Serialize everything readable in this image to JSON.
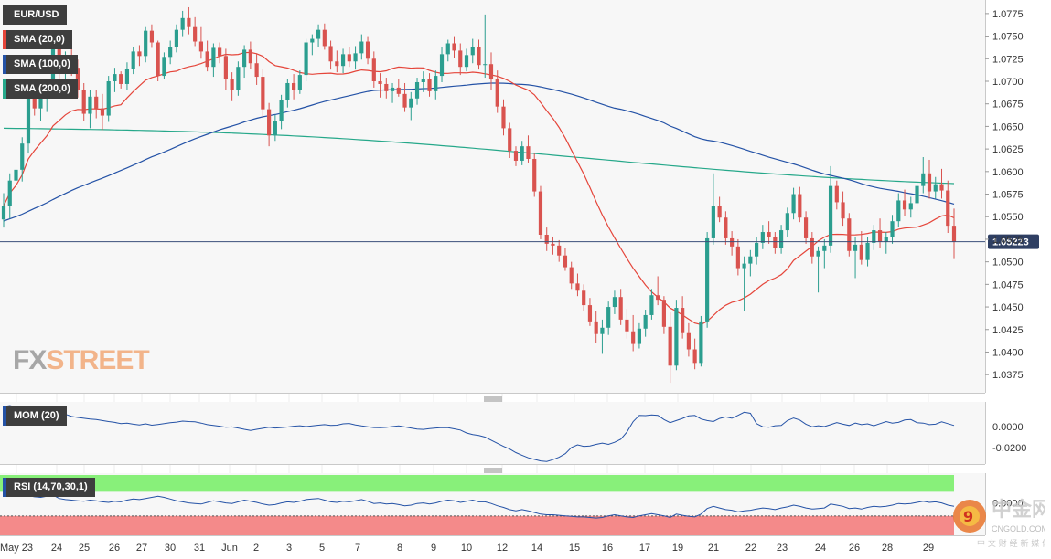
{
  "symbol": "EUR/USD",
  "indicators": {
    "sma20": "SMA (20,0)",
    "sma100": "SMA (100,0)",
    "sma200": "SMA (200,0)",
    "mom": "MOM (20)",
    "rsi": "RSI (14,70,30,1)"
  },
  "watermark": {
    "fx": "FX",
    "street": "STREET"
  },
  "corner_logo": {
    "cn": "中金网",
    "url": "CNGOLD.COM.CN",
    "tagline": "中 文 财 经 新 媒 体"
  },
  "colors": {
    "up": "#2b9e8f",
    "down": "#d9534f",
    "sma20": "#e5453a",
    "sma100": "#2452a6",
    "sma200": "#26a88a",
    "mom": "#2452a6",
    "rsi": "#2452a6",
    "rsi_over": "#88f07a",
    "rsi_under": "#f48a8a",
    "price_line": "#3b4f7a"
  },
  "chart_data": {
    "type": "candlestick",
    "title": "EUR/USD",
    "timeframe_note": "4-hour candles",
    "x_tick_labels": [
      "May 23",
      "24",
      "25",
      "26",
      "27",
      "30",
      "31",
      "Jun",
      "2",
      "3",
      "5",
      "7",
      "8",
      "9",
      "10",
      "12",
      "14",
      "15",
      "16",
      "17",
      "19",
      "21",
      "22",
      "23",
      "24",
      "26",
      "28",
      "29"
    ],
    "price_axis": {
      "ticks": [
        "1.0775",
        "1.0750",
        "1.0725",
        "1.0700",
        "1.0675",
        "1.0650",
        "1.0625",
        "1.0600",
        "1.0575",
        "1.0550",
        "1.0525",
        "1.0500",
        "1.0475",
        "1.0450",
        "1.0425",
        "1.0400",
        "1.0375"
      ],
      "range": [
        1.036,
        1.0785
      ],
      "last_price": "1.05223",
      "last_price_value": 1.05223
    },
    "candles": [
      [
        1.0547,
        1.0576,
        1.0538,
        1.0562
      ],
      [
        1.0562,
        1.0598,
        1.0548,
        1.059
      ],
      [
        1.059,
        1.0625,
        1.0577,
        1.0602
      ],
      [
        1.0602,
        1.0638,
        1.0589,
        1.0631
      ],
      [
        1.0631,
        1.0694,
        1.062,
        1.0685
      ],
      [
        1.0685,
        1.0703,
        1.0662,
        1.067
      ],
      [
        1.067,
        1.0688,
        1.0656,
        1.0681
      ],
      [
        1.0681,
        1.0702,
        1.0666,
        1.0695
      ],
      [
        1.0695,
        1.0748,
        1.0686,
        1.074
      ],
      [
        1.074,
        1.0744,
        1.0701,
        1.071
      ],
      [
        1.071,
        1.0733,
        1.0696,
        1.0724
      ],
      [
        1.0724,
        1.0743,
        1.0706,
        1.0715
      ],
      [
        1.0715,
        1.0724,
        1.0682,
        1.069
      ],
      [
        1.069,
        1.0698,
        1.0656,
        1.0664
      ],
      [
        1.0664,
        1.069,
        1.0648,
        1.0683
      ],
      [
        1.0683,
        1.069,
        1.0659,
        1.067
      ],
      [
        1.067,
        1.0686,
        1.0646,
        1.0662
      ],
      [
        1.0662,
        1.0706,
        1.0655,
        1.07
      ],
      [
        1.07,
        1.0715,
        1.0688,
        1.0708
      ],
      [
        1.0708,
        1.0711,
        1.0692,
        1.0697
      ],
      [
        1.0697,
        1.0721,
        1.069,
        1.0714
      ],
      [
        1.0714,
        1.0738,
        1.0708,
        1.0733
      ],
      [
        1.0733,
        1.074,
        1.0717,
        1.0728
      ],
      [
        1.0728,
        1.076,
        1.0721,
        1.0756
      ],
      [
        1.0756,
        1.0763,
        1.0737,
        1.0743
      ],
      [
        1.0743,
        1.0745,
        1.07,
        1.0706
      ],
      [
        1.0706,
        1.0732,
        1.0702,
        1.0727
      ],
      [
        1.0727,
        1.0745,
        1.0719,
        1.0738
      ],
      [
        1.0738,
        1.0763,
        1.0732,
        1.0757
      ],
      [
        1.0757,
        1.0778,
        1.075,
        1.077
      ],
      [
        1.077,
        1.0782,
        1.0752,
        1.076
      ],
      [
        1.076,
        1.0771,
        1.0739,
        1.0744
      ],
      [
        1.0744,
        1.076,
        1.0725,
        1.0733
      ],
      [
        1.0733,
        1.0745,
        1.0711,
        1.0716
      ],
      [
        1.0716,
        1.0742,
        1.0705,
        1.0737
      ],
      [
        1.0737,
        1.0743,
        1.072,
        1.0728
      ],
      [
        1.0728,
        1.0736,
        1.069,
        1.0702
      ],
      [
        1.0702,
        1.071,
        1.0678,
        1.069
      ],
      [
        1.069,
        1.0722,
        1.0684,
        1.0716
      ],
      [
        1.0716,
        1.074,
        1.0704,
        1.0735
      ],
      [
        1.0735,
        1.0744,
        1.0714,
        1.072
      ],
      [
        1.072,
        1.0731,
        1.0696,
        1.0705
      ],
      [
        1.0705,
        1.0714,
        1.066,
        1.0669
      ],
      [
        1.0669,
        1.0676,
        1.0628,
        1.064
      ],
      [
        1.064,
        1.0663,
        1.0634,
        1.0656
      ],
      [
        1.0656,
        1.0685,
        1.0647,
        1.0679
      ],
      [
        1.0679,
        1.0703,
        1.0671,
        1.0698
      ],
      [
        1.0698,
        1.0708,
        1.068,
        1.069
      ],
      [
        1.069,
        1.0712,
        1.0686,
        1.0707
      ],
      [
        1.0707,
        1.0747,
        1.07,
        1.0743
      ],
      [
        1.0743,
        1.0752,
        1.0729,
        1.0747
      ],
      [
        1.0747,
        1.0763,
        1.0738,
        1.0757
      ],
      [
        1.0757,
        1.0764,
        1.0735,
        1.0739
      ],
      [
        1.0739,
        1.0745,
        1.0713,
        1.0722
      ],
      [
        1.0722,
        1.0734,
        1.071,
        1.0717
      ],
      [
        1.0717,
        1.0736,
        1.0709,
        1.073
      ],
      [
        1.073,
        1.0738,
        1.0716,
        1.0722
      ],
      [
        1.0722,
        1.0739,
        1.0713,
        1.0731
      ],
      [
        1.0731,
        1.0752,
        1.0724,
        1.0744
      ],
      [
        1.0744,
        1.075,
        1.0719,
        1.0725
      ],
      [
        1.0725,
        1.0733,
        1.0693,
        1.07
      ],
      [
        1.07,
        1.0709,
        1.0682,
        1.0697
      ],
      [
        1.0697,
        1.0704,
        1.0681,
        1.0689
      ],
      [
        1.0689,
        1.0698,
        1.0676,
        1.0693
      ],
      [
        1.0693,
        1.0703,
        1.0683,
        1.0686
      ],
      [
        1.0686,
        1.0698,
        1.0666,
        1.0671
      ],
      [
        1.0671,
        1.0688,
        1.0657,
        1.0681
      ],
      [
        1.0681,
        1.0704,
        1.0674,
        1.0699
      ],
      [
        1.0699,
        1.0711,
        1.0688,
        1.0703
      ],
      [
        1.0703,
        1.0709,
        1.0683,
        1.0689
      ],
      [
        1.0689,
        1.0712,
        1.068,
        1.0706
      ],
      [
        1.0706,
        1.0738,
        1.0699,
        1.073
      ],
      [
        1.073,
        1.0746,
        1.0722,
        1.0742
      ],
      [
        1.0742,
        1.075,
        1.0726,
        1.0734
      ],
      [
        1.0734,
        1.0742,
        1.0707,
        1.0716
      ],
      [
        1.0716,
        1.0736,
        1.0711,
        1.0729
      ],
      [
        1.0729,
        1.0747,
        1.072,
        1.0738
      ],
      [
        1.0738,
        1.0746,
        1.0713,
        1.0718
      ],
      [
        1.0718,
        1.0774,
        1.0704,
        1.0719
      ],
      [
        1.0719,
        1.0732,
        1.069,
        1.0702
      ],
      [
        1.0702,
        1.0712,
        1.0665,
        1.0672
      ],
      [
        1.0672,
        1.068,
        1.064,
        1.0648
      ],
      [
        1.0648,
        1.0654,
        1.0615,
        1.0623
      ],
      [
        1.0623,
        1.0628,
        1.0606,
        1.0612
      ],
      [
        1.0612,
        1.0634,
        1.0607,
        1.0628
      ],
      [
        1.0628,
        1.064,
        1.061,
        1.0614
      ],
      [
        1.0614,
        1.062,
        1.0572,
        1.0578
      ],
      [
        1.0578,
        1.0584,
        1.0525,
        1.053
      ],
      [
        1.053,
        1.0538,
        1.0512,
        1.052
      ],
      [
        1.052,
        1.0528,
        1.0508,
        1.0518
      ],
      [
        1.0518,
        1.0524,
        1.05,
        1.0507
      ],
      [
        1.0507,
        1.0515,
        1.049,
        1.0494
      ],
      [
        1.0494,
        1.05,
        1.047,
        1.0476
      ],
      [
        1.0476,
        1.0487,
        1.0462,
        1.0468
      ],
      [
        1.0468,
        1.0475,
        1.0446,
        1.0452
      ],
      [
        1.0452,
        1.046,
        1.0429,
        1.0434
      ],
      [
        1.0434,
        1.0446,
        1.041,
        1.042
      ],
      [
        1.042,
        1.0436,
        1.0398,
        1.0427
      ],
      [
        1.0427,
        1.0456,
        1.0419,
        1.045
      ],
      [
        1.045,
        1.0468,
        1.0442,
        1.0461
      ],
      [
        1.0461,
        1.047,
        1.043,
        1.0436
      ],
      [
        1.0436,
        1.0448,
        1.0415,
        1.0423
      ],
      [
        1.0423,
        1.0441,
        1.0401,
        1.0409
      ],
      [
        1.0409,
        1.0432,
        1.0404,
        1.0426
      ],
      [
        1.0426,
        1.0447,
        1.0417,
        1.0441
      ],
      [
        1.0441,
        1.047,
        1.0436,
        1.0463
      ],
      [
        1.0463,
        1.0484,
        1.0452,
        1.0458
      ],
      [
        1.0458,
        1.0462,
        1.042,
        1.0428
      ],
      [
        1.0428,
        1.0444,
        1.0366,
        1.0385
      ],
      [
        1.0385,
        1.0458,
        1.038,
        1.0449
      ],
      [
        1.0449,
        1.0462,
        1.0415,
        1.0421
      ],
      [
        1.0421,
        1.0432,
        1.0395,
        1.0403
      ],
      [
        1.0403,
        1.0415,
        1.0381,
        1.0388
      ],
      [
        1.0388,
        1.044,
        1.0384,
        1.0434
      ],
      [
        1.0434,
        1.0533,
        1.0427,
        1.0526
      ],
      [
        1.0526,
        1.0598,
        1.0519,
        1.0562
      ],
      [
        1.0562,
        1.0572,
        1.0544,
        1.0549
      ],
      [
        1.0549,
        1.0556,
        1.0519,
        1.0526
      ],
      [
        1.0526,
        1.0534,
        1.0507,
        1.0517
      ],
      [
        1.0517,
        1.0525,
        1.0485,
        1.0493
      ],
      [
        1.0493,
        1.0506,
        1.0446,
        1.0498
      ],
      [
        1.0498,
        1.0513,
        1.0484,
        1.0506
      ],
      [
        1.0506,
        1.0527,
        1.0497,
        1.0521
      ],
      [
        1.0521,
        1.0541,
        1.0514,
        1.0533
      ],
      [
        1.0533,
        1.0545,
        1.052,
        1.0527
      ],
      [
        1.0527,
        1.0533,
        1.0509,
        1.0515
      ],
      [
        1.0515,
        1.0541,
        1.0509,
        1.0535
      ],
      [
        1.0535,
        1.056,
        1.0528,
        1.0554
      ],
      [
        1.0554,
        1.0582,
        1.0547,
        1.0575
      ],
      [
        1.0575,
        1.0583,
        1.0544,
        1.0549
      ],
      [
        1.0549,
        1.0556,
        1.052,
        1.0526
      ],
      [
        1.0526,
        1.0533,
        1.0498,
        1.0506
      ],
      [
        1.0506,
        1.0517,
        1.0466,
        1.0512
      ],
      [
        1.0512,
        1.0525,
        1.0493,
        1.0518
      ],
      [
        1.0518,
        1.0606,
        1.051,
        1.0584
      ],
      [
        1.0584,
        1.059,
        1.0558,
        1.0566
      ],
      [
        1.0566,
        1.0578,
        1.054,
        1.0548
      ],
      [
        1.0548,
        1.0554,
        1.0506,
        1.0512
      ],
      [
        1.0512,
        1.0527,
        1.0482,
        1.0519
      ],
      [
        1.0519,
        1.0534,
        1.0497,
        1.0502
      ],
      [
        1.0502,
        1.0527,
        1.0495,
        1.0521
      ],
      [
        1.0521,
        1.0541,
        1.0513,
        1.0535
      ],
      [
        1.0535,
        1.0548,
        1.0515,
        1.0522
      ],
      [
        1.0522,
        1.0533,
        1.0509,
        1.0527
      ],
      [
        1.0527,
        1.0552,
        1.052,
        1.0545
      ],
      [
        1.0545,
        1.0576,
        1.0539,
        1.0568
      ],
      [
        1.0568,
        1.058,
        1.0551,
        1.0558
      ],
      [
        1.0558,
        1.0572,
        1.0549,
        1.0565
      ],
      [
        1.0565,
        1.0589,
        1.0556,
        1.0584
      ],
      [
        1.0584,
        1.0616,
        1.0576,
        1.0598
      ],
      [
        1.0598,
        1.0613,
        1.057,
        1.0578
      ],
      [
        1.0578,
        1.0594,
        1.057,
        1.0586
      ],
      [
        1.0586,
        1.0603,
        1.057,
        1.0579
      ],
      [
        1.0579,
        1.059,
        1.0532,
        1.054
      ],
      [
        1.054,
        1.0559,
        1.0503,
        1.0522
      ]
    ],
    "mom": {
      "ticks": [
        "0.0000",
        "-0.0200"
      ],
      "range": [
        -0.036,
        0.024
      ],
      "values": [
        0.0195,
        0.0205,
        0.019,
        0.0176,
        0.0182,
        0.0168,
        0.017,
        0.016,
        0.0156,
        0.015,
        0.012,
        0.01,
        0.009,
        0.0082,
        0.0075,
        0.007,
        0.006,
        0.005,
        0.0042,
        0.003,
        0.0035,
        0.0025,
        0.0018,
        0.0028,
        0.0015,
        0.0022,
        0.003,
        0.004,
        0.0045,
        0.0055,
        0.005,
        0.0048,
        0.0035,
        0.002,
        0.0012,
        0.0005,
        -0.0005,
        -0.0002,
        -0.0012,
        -0.0025,
        -0.0035,
        -0.0025,
        -0.0015,
        -0.0005,
        -0.0012,
        -0.0008,
        -0.0003,
        0.0005,
        0.001,
        0.0002,
        0.0008,
        0.0015,
        0.002,
        0.0012,
        0.0015,
        0.0028,
        0.0032,
        0.0018,
        0.0008,
        0.0,
        -0.0008,
        -0.001,
        -0.0006,
        0.0002,
        0.0008,
        -0.0002,
        -0.0012,
        -0.0022,
        -0.0026,
        -0.0018,
        -0.0012,
        -0.0008,
        -0.001,
        -0.002,
        -0.0032,
        -0.006,
        -0.0075,
        -0.0085,
        -0.01,
        -0.013,
        -0.016,
        -0.019,
        -0.0215,
        -0.025,
        -0.0275,
        -0.03,
        -0.0315,
        -0.033,
        -0.0335,
        -0.0318,
        -0.0295,
        -0.026,
        -0.02,
        -0.0175,
        -0.019,
        -0.0185,
        -0.017,
        -0.0158,
        -0.017,
        -0.015,
        -0.012,
        -0.005,
        0.005,
        0.011,
        0.0108,
        0.0115,
        0.011,
        0.007,
        0.004,
        0.006,
        0.008,
        0.0105,
        0.011,
        0.0075,
        0.006,
        0.005,
        0.008,
        0.0095,
        0.0082,
        0.011,
        0.014,
        0.013,
        0.003,
        0.0,
        -0.0005,
        0.001,
        0.0012,
        0.006,
        0.0085,
        0.0065,
        0.0025,
        0.0,
        0.001,
        0.0002,
        0.002,
        0.004,
        0.0025,
        0.0012,
        0.0035,
        0.002,
        0.0028,
        0.001,
        0.003,
        0.005,
        0.0035,
        0.0042,
        0.0065,
        0.007,
        0.004,
        0.0035,
        0.002,
        0.0025,
        0.0048,
        0.003,
        0.0012
      ]
    },
    "rsi": {
      "ticks": [
        "0.0000"
      ],
      "overbought": 70,
      "oversold": 30,
      "values": [
        66,
        68,
        64,
        62,
        63,
        61,
        60,
        62,
        64,
        58,
        56,
        55,
        54,
        53,
        55,
        54,
        52,
        51,
        53,
        52,
        55,
        57,
        56,
        58,
        60,
        62,
        60,
        57,
        54,
        52,
        50,
        49,
        48,
        51,
        54,
        52,
        50,
        49,
        52,
        55,
        53,
        51,
        48,
        46,
        47,
        50,
        52,
        51,
        53,
        56,
        57,
        58,
        55,
        52,
        51,
        53,
        52,
        54,
        56,
        53,
        49,
        50,
        48,
        49,
        47,
        45,
        46,
        49,
        50,
        48,
        50,
        53,
        55,
        54,
        51,
        53,
        55,
        52,
        52,
        49,
        45,
        42,
        38,
        36,
        38,
        36,
        33,
        30,
        29,
        29,
        28,
        27,
        26,
        25,
        25,
        24,
        23,
        24,
        27,
        29,
        27,
        25,
        24,
        27,
        29,
        31,
        29,
        27,
        24,
        30,
        28,
        26,
        25,
        30,
        40,
        44,
        41,
        38,
        37,
        34,
        36,
        37,
        39,
        41,
        40,
        38,
        41,
        43,
        46,
        44,
        41,
        39,
        40,
        41,
        48,
        46,
        44,
        40,
        41,
        39,
        42,
        44,
        43,
        44,
        46,
        49,
        48,
        49,
        51,
        53,
        51,
        52,
        50,
        46,
        44
      ]
    }
  }
}
